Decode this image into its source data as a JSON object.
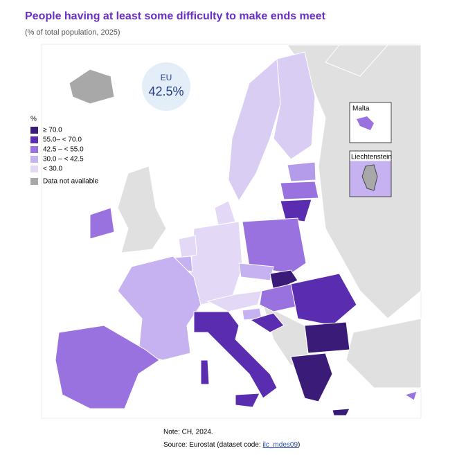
{
  "header": {
    "title": "People having at least some difficulty to make ends meet",
    "subtitle": "(% of total population, 2025)"
  },
  "eu_badge": {
    "label": "EU",
    "value": "42.5%"
  },
  "legend": {
    "title": "%",
    "items": [
      {
        "label": "≥ 70.0",
        "color": "#3b1b78"
      },
      {
        "label": "55.0– < 70.0",
        "color": "#5a2db0"
      },
      {
        "label": "42.5 – < 55.0",
        "color": "#9a72e0"
      },
      {
        "label": "30.0 – < 42.5",
        "color": "#c6b2f0"
      },
      {
        "label": "< 30.0",
        "color": "#e3d9f7"
      }
    ],
    "not_available": {
      "label": "Data not available",
      "color": "#a8a8a8"
    }
  },
  "insets": [
    "Malta",
    "Liechtenstein"
  ],
  "footer": {
    "note": "Note: CH, 2024.",
    "source": "Source: Eurostat (dataset code: ",
    "link": "ilc_mdes09",
    "source_end": ")"
  }
}
